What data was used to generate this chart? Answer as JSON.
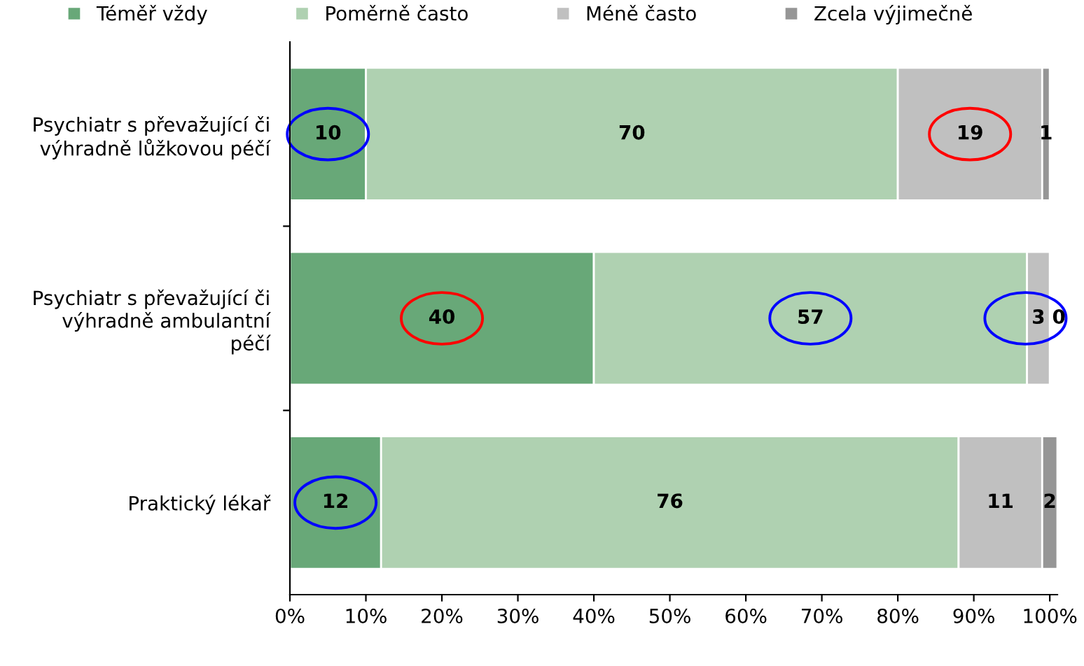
{
  "chart_data": {
    "type": "bar",
    "orientation": "horizontal",
    "stacked": true,
    "data_labels": true,
    "legend": "top",
    "grid": false,
    "categories": [
      "Psychiatr s převažující či\nvýhradně lůžkovou péčí",
      "Psychiatr s převažující či\nvýhradně ambulantní\npéčí",
      "Praktický lékař"
    ],
    "series": [
      {
        "name": "Téměř vždy",
        "color": "#68a878",
        "values": [
          10,
          40,
          12
        ]
      },
      {
        "name": "Poměrně často",
        "color": "#afd1b1",
        "values": [
          70,
          57,
          76
        ]
      },
      {
        "name": "Méně často",
        "color": "#c0c0c0",
        "values": [
          19,
          3,
          11
        ]
      },
      {
        "name": "Zcela výjimečně",
        "color": "#969696",
        "values": [
          1,
          0,
          2
        ]
      }
    ],
    "xlim": [
      0,
      101
    ],
    "xticks": [
      {
        "value": 0,
        "label": "0%"
      },
      {
        "value": 10,
        "label": "10%"
      },
      {
        "value": 20,
        "label": "20%"
      },
      {
        "value": 30,
        "label": "30%"
      },
      {
        "value": 40,
        "label": "40%"
      },
      {
        "value": 50,
        "label": "50%"
      },
      {
        "value": 60,
        "label": "60%"
      },
      {
        "value": 70,
        "label": "70%"
      },
      {
        "value": 80,
        "label": "80%"
      },
      {
        "value": 90,
        "label": "90%"
      },
      {
        "value": 100,
        "label": "100%"
      }
    ]
  }
}
